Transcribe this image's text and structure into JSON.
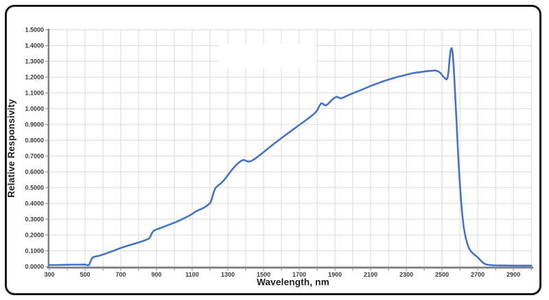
{
  "chart_data": {
    "type": "line",
    "title": "",
    "xlabel": "Wavelength, nm",
    "ylabel": "Relative Responsivity",
    "xlim": [
      300,
      3000
    ],
    "ylim": [
      0,
      1.5
    ],
    "grid": true,
    "grid_step_x": 100,
    "grid_step_y": 0.1,
    "legend": "none",
    "x_tick_labels": [
      "300",
      "500",
      "700",
      "900",
      "1100",
      "1300",
      "1500",
      "1700",
      "1900",
      "2100",
      "2300",
      "2500",
      "2700",
      "2900"
    ],
    "y_tick_labels": [
      "0.0000",
      "0.1000",
      "0.2000",
      "0.3000",
      "0.4000",
      "0.5000",
      "0.6000",
      "0.7000",
      "0.8000",
      "0.9000",
      "1.0000",
      "1.1000",
      "1.2000",
      "1.3000",
      "1.4000",
      "1.5000"
    ],
    "colors": {
      "line": "#4472C4",
      "grid": "#D8D8D8",
      "axis": "#7F7F7F",
      "tick_text": "#3A3A3A",
      "frame": "#161616"
    },
    "artifacts": {
      "white_patch": {
        "description": "blank white rectangle covering gridlines (erased label area)",
        "nm_min": 1250,
        "nm_max": 1796,
        "val_min": 1.258,
        "val_max": 1.41
      }
    },
    "series": [
      {
        "name": "relative-responsivity",
        "points": [
          [
            300,
            0.01
          ],
          [
            340,
            0.01
          ],
          [
            380,
            0.011
          ],
          [
            420,
            0.012
          ],
          [
            460,
            0.012
          ],
          [
            490,
            0.013
          ],
          [
            506,
            0.012
          ],
          [
            515,
            0.007
          ],
          [
            522,
            0.01
          ],
          [
            530,
            0.03
          ],
          [
            538,
            0.052
          ],
          [
            548,
            0.061
          ],
          [
            575,
            0.068
          ],
          [
            600,
            0.076
          ],
          [
            650,
            0.096
          ],
          [
            700,
            0.118
          ],
          [
            750,
            0.136
          ],
          [
            800,
            0.153
          ],
          [
            830,
            0.164
          ],
          [
            848,
            0.172
          ],
          [
            858,
            0.178
          ],
          [
            866,
            0.19
          ],
          [
            875,
            0.213
          ],
          [
            885,
            0.227
          ],
          [
            895,
            0.233
          ],
          [
            920,
            0.243
          ],
          [
            960,
            0.261
          ],
          [
            1000,
            0.278
          ],
          [
            1040,
            0.298
          ],
          [
            1070,
            0.315
          ],
          [
            1095,
            0.33
          ],
          [
            1112,
            0.343
          ],
          [
            1130,
            0.355
          ],
          [
            1150,
            0.364
          ],
          [
            1172,
            0.377
          ],
          [
            1190,
            0.392
          ],
          [
            1202,
            0.404
          ],
          [
            1210,
            0.43
          ],
          [
            1220,
            0.47
          ],
          [
            1230,
            0.497
          ],
          [
            1242,
            0.511
          ],
          [
            1262,
            0.528
          ],
          [
            1282,
            0.552
          ],
          [
            1302,
            0.582
          ],
          [
            1322,
            0.612
          ],
          [
            1342,
            0.638
          ],
          [
            1360,
            0.657
          ],
          [
            1375,
            0.67
          ],
          [
            1388,
            0.676
          ],
          [
            1400,
            0.671
          ],
          [
            1413,
            0.665
          ],
          [
            1428,
            0.667
          ],
          [
            1448,
            0.68
          ],
          [
            1472,
            0.7
          ],
          [
            1500,
            0.725
          ],
          [
            1532,
            0.754
          ],
          [
            1565,
            0.784
          ],
          [
            1600,
            0.814
          ],
          [
            1635,
            0.843
          ],
          [
            1668,
            0.87
          ],
          [
            1700,
            0.897
          ],
          [
            1732,
            0.923
          ],
          [
            1762,
            0.948
          ],
          [
            1788,
            0.972
          ],
          [
            1802,
            0.992
          ],
          [
            1812,
            1.015
          ],
          [
            1822,
            1.034
          ],
          [
            1833,
            1.031
          ],
          [
            1845,
            1.02
          ],
          [
            1857,
            1.026
          ],
          [
            1870,
            1.041
          ],
          [
            1884,
            1.057
          ],
          [
            1898,
            1.069
          ],
          [
            1910,
            1.076
          ],
          [
            1922,
            1.069
          ],
          [
            1935,
            1.065
          ],
          [
            1950,
            1.072
          ],
          [
            1968,
            1.082
          ],
          [
            1985,
            1.09
          ],
          [
            2005,
            1.1
          ],
          [
            2035,
            1.113
          ],
          [
            2065,
            1.127
          ],
          [
            2100,
            1.144
          ],
          [
            2140,
            1.161
          ],
          [
            2180,
            1.177
          ],
          [
            2220,
            1.191
          ],
          [
            2260,
            1.204
          ],
          [
            2300,
            1.215
          ],
          [
            2340,
            1.226
          ],
          [
            2380,
            1.232
          ],
          [
            2415,
            1.238
          ],
          [
            2446,
            1.24
          ],
          [
            2460,
            1.242
          ],
          [
            2476,
            1.238
          ],
          [
            2492,
            1.225
          ],
          [
            2505,
            1.205
          ],
          [
            2515,
            1.193
          ],
          [
            2524,
            1.185
          ],
          [
            2530,
            1.192
          ],
          [
            2536,
            1.23
          ],
          [
            2542,
            1.31
          ],
          [
            2548,
            1.37
          ],
          [
            2553,
            1.384
          ],
          [
            2558,
            1.368
          ],
          [
            2564,
            1.29
          ],
          [
            2570,
            1.16
          ],
          [
            2576,
            1.03
          ],
          [
            2582,
            0.9
          ],
          [
            2588,
            0.76
          ],
          [
            2594,
            0.63
          ],
          [
            2600,
            0.52
          ],
          [
            2607,
            0.41
          ],
          [
            2614,
            0.32
          ],
          [
            2622,
            0.245
          ],
          [
            2632,
            0.185
          ],
          [
            2642,
            0.142
          ],
          [
            2652,
            0.113
          ],
          [
            2664,
            0.094
          ],
          [
            2676,
            0.08
          ],
          [
            2690,
            0.068
          ],
          [
            2702,
            0.056
          ],
          [
            2712,
            0.044
          ],
          [
            2722,
            0.032
          ],
          [
            2734,
            0.02
          ],
          [
            2748,
            0.013
          ],
          [
            2765,
            0.01
          ],
          [
            2790,
            0.008
          ],
          [
            2840,
            0.007
          ],
          [
            2900,
            0.006
          ],
          [
            2950,
            0.006
          ],
          [
            3000,
            0.006
          ]
        ]
      }
    ]
  }
}
